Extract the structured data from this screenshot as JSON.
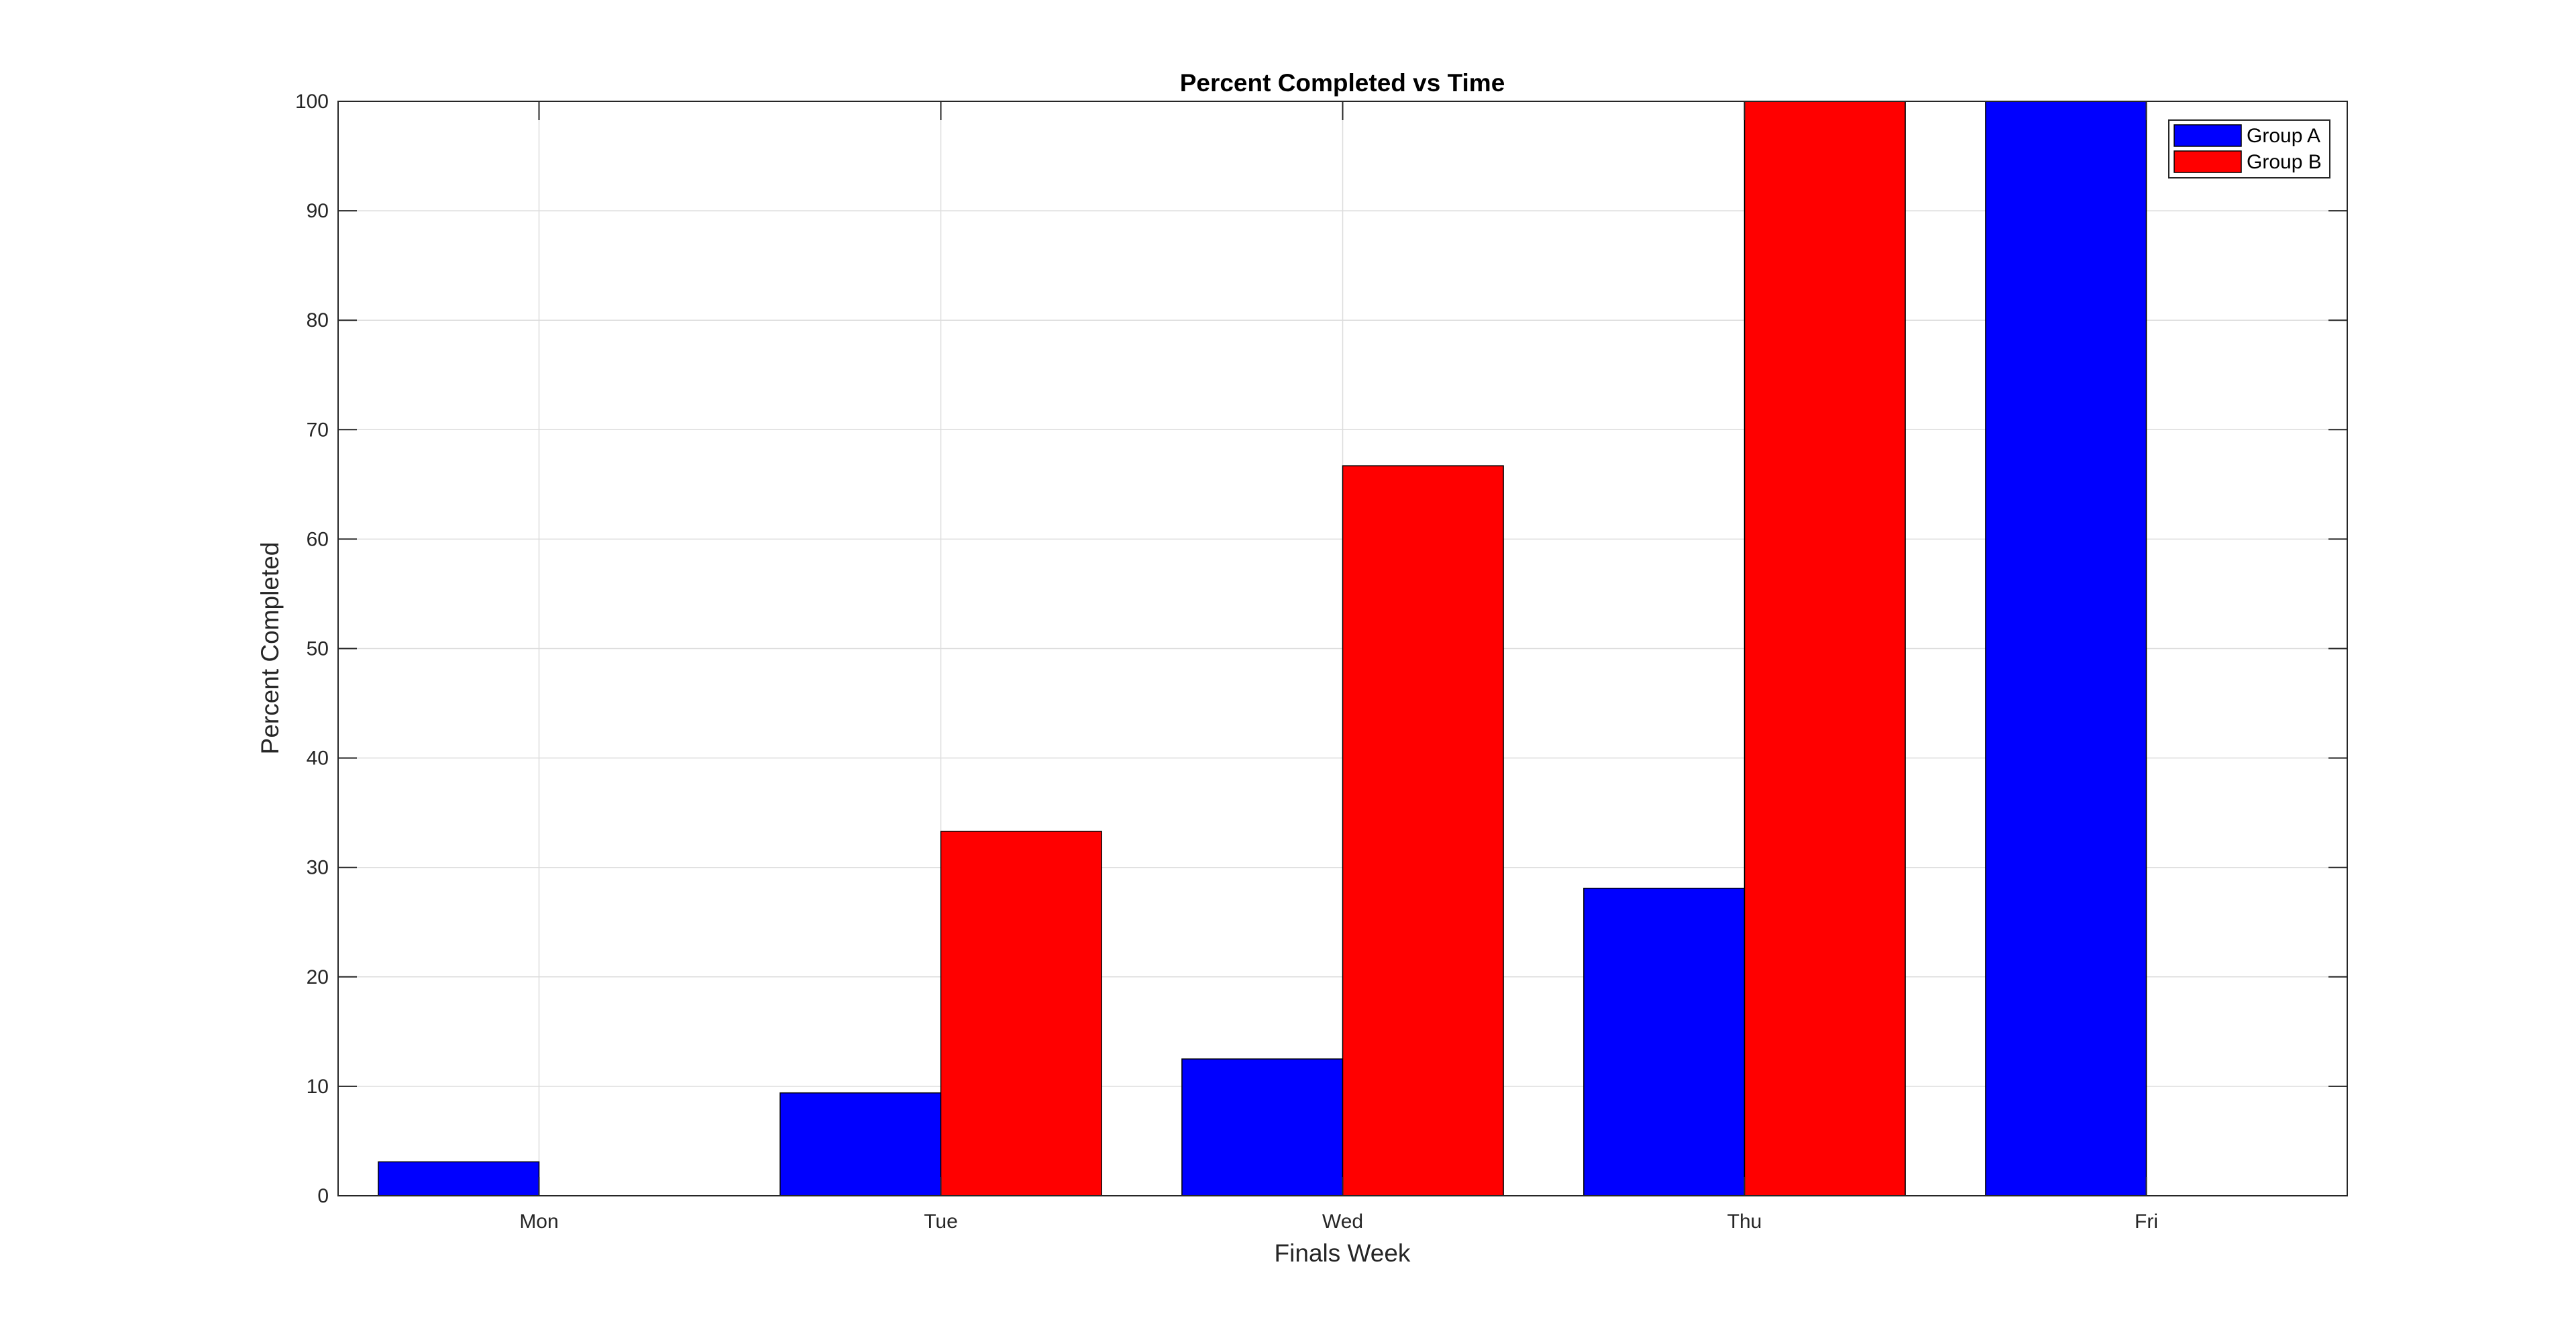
{
  "chart_data": {
    "type": "bar",
    "title": "Percent Completed vs Time",
    "xlabel": "Finals Week",
    "ylabel": "Percent Completed",
    "categories": [
      "Mon",
      "Tue",
      "Wed",
      "Thu",
      "Fri"
    ],
    "series": [
      {
        "name": "Group A",
        "color": "#0000ff",
        "values": [
          3.1,
          9.4,
          12.5,
          28.1,
          100
        ]
      },
      {
        "name": "Group B",
        "color": "#ff0000",
        "values": [
          0,
          33.3,
          66.7,
          100,
          0
        ]
      }
    ],
    "ylim": [
      0,
      100
    ],
    "yticks": [
      0,
      10,
      20,
      30,
      40,
      50,
      60,
      70,
      80,
      90,
      100
    ],
    "grid": true,
    "legend_position": "top-right"
  }
}
